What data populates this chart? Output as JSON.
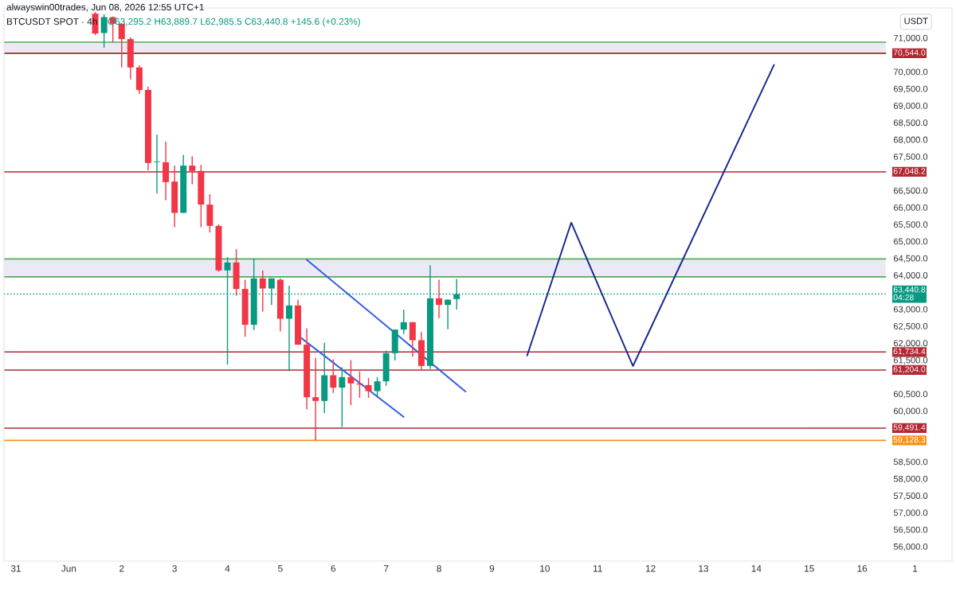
{
  "chart_data": {
    "type": "candlestick",
    "title": "BTCUSDT SPOT · 4h",
    "ylabel": "USDT",
    "annotations": [
      "alwayswin00trades, Jun 08, 2026 12:55 UTC+1",
      "O63,295.2 H63,889.7 L62,985.5 C63,440.8 +145.6 (+0.23%)"
    ],
    "x": [
      "2026-06-01T12:00",
      "2026-06-01T16:00",
      "2026-06-01T20:00",
      "2026-06-02T00:00",
      "2026-06-02T04:00",
      "2026-06-02T08:00",
      "2026-06-02T12:00",
      "2026-06-02T16:00",
      "2026-06-02T20:00",
      "2026-06-03T00:00",
      "2026-06-03T04:00",
      "2026-06-03T08:00",
      "2026-06-03T12:00",
      "2026-06-03T16:00",
      "2026-06-03T20:00",
      "2026-06-04T00:00",
      "2026-06-04T04:00",
      "2026-06-04T08:00",
      "2026-06-04T12:00",
      "2026-06-04T16:00",
      "2026-06-04T20:00",
      "2026-06-05T00:00",
      "2026-06-05T04:00",
      "2026-06-05T08:00",
      "2026-06-05T12:00",
      "2026-06-05T16:00",
      "2026-06-05T20:00",
      "2026-06-06T00:00",
      "2026-06-06T04:00",
      "2026-06-06T08:00",
      "2026-06-06T12:00",
      "2026-06-06T16:00",
      "2026-06-06T20:00",
      "2026-06-07T00:00",
      "2026-06-07T04:00",
      "2026-06-07T08:00",
      "2026-06-07T12:00",
      "2026-06-07T16:00",
      "2026-06-07T20:00",
      "2026-06-08T00:00",
      "2026-06-08T04:00",
      "2026-06-08T08:00"
    ],
    "ohlc": [
      [
        71713,
        71767,
        71080,
        71127
      ],
      [
        71141,
        71697,
        70711,
        71610
      ],
      [
        71610,
        71627,
        70869,
        71415
      ],
      [
        71415,
        71415,
        70125,
        70962
      ],
      [
        70962,
        71016,
        69773,
        70125
      ],
      [
        70125,
        70188,
        69343,
        69460
      ],
      [
        69460,
        69561,
        67090,
        67308
      ],
      [
        67335,
        68146,
        66409,
        67355
      ],
      [
        67330,
        67935,
        66212,
        66745
      ],
      [
        66760,
        67231,
        65414,
        65837
      ],
      [
        65837,
        67543,
        65837,
        67231
      ],
      [
        67231,
        67503,
        66681,
        67073
      ],
      [
        67073,
        67254,
        65414,
        66081
      ],
      [
        66081,
        66386,
        65259,
        65454
      ],
      [
        65454,
        65500,
        64100,
        64140
      ],
      [
        64140,
        64532,
        61363,
        64375
      ],
      [
        64375,
        64766,
        63396,
        63593
      ],
      [
        63593,
        63865,
        62185,
        62537
      ],
      [
        62537,
        64492,
        62380,
        63905
      ],
      [
        63905,
        64140,
        62926,
        63607
      ],
      [
        63607,
        63905,
        63123,
        63905
      ],
      [
        63865,
        63905,
        62340,
        62715
      ],
      [
        62715,
        63687,
        61166,
        63107
      ],
      [
        63107,
        63278,
        61950,
        61950
      ],
      [
        61950,
        62433,
        60049,
        60401
      ],
      [
        60401,
        61558,
        59128.3,
        60291
      ],
      [
        60291,
        62004,
        59932,
        61049
      ],
      [
        61049,
        61518,
        60525,
        60683
      ],
      [
        60683,
        61284,
        59523,
        60995
      ],
      [
        60995,
        61495,
        60166,
        60807
      ],
      [
        60807,
        61166,
        60385,
        60776
      ],
      [
        60760,
        60971,
        60385,
        60580
      ],
      [
        60580,
        60995,
        60385,
        60870
      ],
      [
        60870,
        61776,
        60737,
        61699
      ],
      [
        61699,
        62396,
        61481,
        62396
      ],
      [
        62396,
        62983,
        62262,
        62614
      ],
      [
        62614,
        62614,
        61598,
        62082
      ],
      [
        62082,
        62325,
        61206,
        61324
      ],
      [
        61324,
        64297,
        61240,
        63318
      ],
      [
        63318,
        63865,
        62731,
        63123
      ],
      [
        63123,
        63278,
        62403,
        63278
      ],
      [
        63295.2,
        63889.7,
        62985.5,
        63440.8
      ]
    ],
    "colors": [
      "#f23645",
      "#089981",
      "#f23645",
      "#f23645",
      "#f23645",
      "#f23645",
      "#f23645",
      "#089981",
      "#f23645",
      "#f23645",
      "#089981",
      "#f23645",
      "#f23645",
      "#f23645",
      "#f23645",
      "#089981",
      "#f23645",
      "#f23645",
      "#089981",
      "#f23645",
      "#089981",
      "#f23645",
      "#089981",
      "#f23645",
      "#f23645",
      "#f23645",
      "#089981",
      "#f23645",
      "#089981",
      "#f23645",
      "#f23645",
      "#f23645",
      "#089981",
      "#089981",
      "#089981",
      "#089981",
      "#f23645",
      "#f23645",
      "#089981",
      "#f23645",
      "#089981",
      "#089981"
    ],
    "series": [
      {
        "type": "line",
        "color": "#2f5ee0",
        "x": [
          "2026-06-05T12:00",
          "2026-06-08T12:00"
        ],
        "values": [
          64450,
          60570
        ]
      },
      {
        "type": "line",
        "color": "#2f5ee0",
        "x": [
          "2026-06-05T08:00",
          "2026-06-07T08:00"
        ],
        "values": [
          62220,
          59820
        ]
      },
      {
        "type": "line",
        "color": "#14288c",
        "x": [
          "2026-06-09T16:00",
          "2026-06-10T12:00",
          "2026-06-11T16:00",
          "2026-06-14T08:00"
        ],
        "values": [
          61630,
          65550,
          61320,
          70200
        ]
      }
    ],
    "ref_lines": [
      {
        "axis": "y",
        "value": 70544.0,
        "label": "70,544.0",
        "color": "#b22833"
      },
      {
        "axis": "y",
        "value": 67048.2,
        "label": "67,048.2",
        "color": "#b22833"
      },
      {
        "axis": "y",
        "value": 63440.8,
        "label": "63,440.8\n04:28",
        "color": "#089981",
        "line_style": "dotted"
      },
      {
        "axis": "y",
        "value": 61734.4,
        "label": "61,734.4",
        "color": "#b22833"
      },
      {
        "axis": "y",
        "value": 61204.0,
        "label": "61,204.0",
        "color": "#b22833"
      },
      {
        "axis": "y",
        "value": 59491.4,
        "label": "59,491.4",
        "color": "#b22833"
      },
      {
        "axis": "y",
        "value": 59128.3,
        "label": "59,128.3",
        "color": "#f7931a"
      }
    ],
    "bands": [
      {
        "axis": "y",
        "from": 70544.0,
        "to": 70870,
        "color": "#ece9f7"
      },
      {
        "axis": "y",
        "from": 63950,
        "to": 64480,
        "color": "#ece9f7"
      }
    ],
    "xlim": [
      "2026-05-30T18:35",
      "2026-06-17T16:48"
    ],
    "ylim": [
      55570,
      71880
    ],
    "xticks": [
      {
        "value": "2026-05-31",
        "label": "31"
      },
      {
        "value": "2026-06-01",
        "label": "Jun"
      },
      {
        "value": "2026-06-02",
        "label": "2"
      },
      {
        "value": "2026-06-03",
        "label": "3"
      },
      {
        "value": "2026-06-04",
        "label": "4"
      },
      {
        "value": "2026-06-05",
        "label": "5"
      },
      {
        "value": "2026-06-06",
        "label": "6"
      },
      {
        "value": "2026-06-07",
        "label": "7"
      },
      {
        "value": "2026-06-08",
        "label": "8"
      },
      {
        "value": "2026-06-09",
        "label": "9"
      },
      {
        "value": "2026-06-10",
        "label": "10"
      },
      {
        "value": "2026-06-11",
        "label": "11"
      },
      {
        "value": "2026-06-12",
        "label": "12"
      },
      {
        "value": "2026-06-13",
        "label": "13"
      },
      {
        "value": "2026-06-14",
        "label": "14"
      },
      {
        "value": "2026-06-15",
        "label": "15"
      },
      {
        "value": "2026-06-16",
        "label": "16"
      },
      {
        "value": "2026-06-17",
        "label": "1"
      }
    ],
    "yticks": [
      {
        "value": 56000,
        "label": "56,000.0"
      },
      {
        "value": 56500,
        "label": "56,500.0"
      },
      {
        "value": 57000,
        "label": "57,000.0"
      },
      {
        "value": 57500,
        "label": "57,500.0"
      },
      {
        "value": 58000,
        "label": "58,000.0"
      },
      {
        "value": 58500,
        "label": "58,500.0"
      },
      {
        "value": 60000,
        "label": "60,000.0"
      },
      {
        "value": 60500,
        "label": "60,500.0"
      },
      {
        "value": 61500,
        "label": "61,500.0"
      },
      {
        "value": 62000,
        "label": "62,000.0"
      },
      {
        "value": 62500,
        "label": "62,500.0"
      },
      {
        "value": 63000,
        "label": "63,000.0"
      },
      {
        "value": 64000,
        "label": "64,000.0"
      },
      {
        "value": 64500,
        "label": "64,500.0"
      },
      {
        "value": 65000,
        "label": "65,000.0"
      },
      {
        "value": 65500,
        "label": "65,500.0"
      },
      {
        "value": 66000,
        "label": "66,000.0"
      },
      {
        "value": 66500,
        "label": "66,500.0"
      },
      {
        "value": 67500,
        "label": "67,500.0"
      },
      {
        "value": 68000,
        "label": "68,000.0"
      },
      {
        "value": 68500,
        "label": "68,500.0"
      },
      {
        "value": 69000,
        "label": "69,000.0"
      },
      {
        "value": 69500,
        "label": "69,500.0"
      },
      {
        "value": 70000,
        "label": "70,000.0"
      },
      {
        "value": 71000,
        "label": "71,000.0"
      }
    ],
    "legend": false
  }
}
